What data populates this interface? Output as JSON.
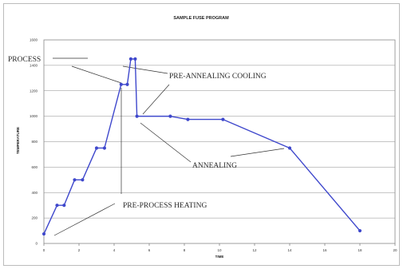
{
  "chart_data": {
    "type": "line",
    "title": "SAMPLE FUSE PROGRAM",
    "xlabel": "TIME",
    "ylabel": "TEMPERATURE",
    "xlim": [
      0,
      20
    ],
    "ylim": [
      0,
      1600
    ],
    "x_ticks": [
      "0",
      "2",
      "4",
      "6",
      "8",
      "10",
      "12",
      "14",
      "16",
      "18",
      "20"
    ],
    "y_ticks": [
      "0",
      "200",
      "400",
      "600",
      "800",
      "1000",
      "1200",
      "1400",
      "1600"
    ],
    "grid": "horizontal",
    "series": [
      {
        "color": "#3f48cc",
        "x": [
          0,
          0.75,
          1.15,
          1.75,
          2.2,
          3.0,
          3.45,
          4.4,
          4.75,
          4.95,
          5.2,
          5.3,
          7.2,
          8.2,
          10.2,
          14.0,
          18.0
        ],
        "y": [
          75,
          300,
          300,
          500,
          500,
          750,
          750,
          1250,
          1250,
          1450,
          1450,
          1000,
          1000,
          975,
          975,
          750,
          100
        ]
      }
    ],
    "annotations": [
      {
        "text": "PROCESS"
      },
      {
        "text": "PRE-ANNEALING COOLING"
      },
      {
        "text": "ANNEALING"
      },
      {
        "text": "PRE-PROCESS HEATING"
      }
    ]
  }
}
